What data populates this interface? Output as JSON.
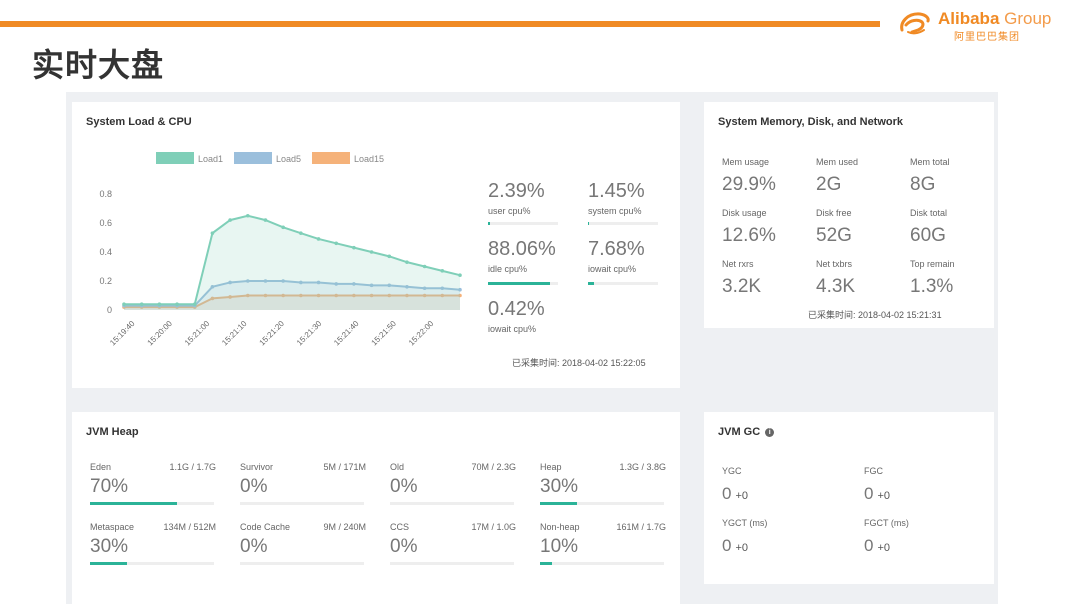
{
  "header": {
    "title": "实时大盘",
    "brand": {
      "name": "Alibaba",
      "group": "Group",
      "cn": "阿里巴巴集团"
    }
  },
  "colors": {
    "accent": "#f08a24",
    "load1": "#7fcfb8",
    "load5": "#9bbfdc",
    "load15": "#f5b27a",
    "bar": "#2bb398"
  },
  "load_card": {
    "title": "System Load & CPU",
    "stats": [
      {
        "value": "2.39%",
        "label": "user cpu%"
      },
      {
        "value": "1.45%",
        "label": "system cpu%"
      },
      {
        "value": "88.06%",
        "label": "idle cpu%"
      },
      {
        "value": "7.68%",
        "label": "iowait cpu%"
      },
      {
        "value": "0.42%",
        "label": "iowait cpu%"
      }
    ],
    "timestamp": "已采集时间: 2018-04-02 15:22:05"
  },
  "chart_data": {
    "type": "line",
    "legend": [
      "Load1",
      "Load5",
      "Load15"
    ],
    "yticks": [
      "0.8",
      "0.6",
      "0.4",
      "0.2",
      "0"
    ],
    "ylim": [
      0,
      0.8
    ],
    "xticks": [
      "15:19:40",
      "15:20:00",
      "15:21:00",
      "15:21:10",
      "15:21:20",
      "15:21:30",
      "15:21:40",
      "15:21:50",
      "15:22:00"
    ],
    "x": [
      0,
      1,
      2,
      3,
      4,
      5,
      6,
      7,
      8,
      9,
      10,
      11,
      12,
      13,
      14,
      15,
      16,
      17,
      18,
      19
    ],
    "series": [
      {
        "name": "Load1",
        "values": [
          0.04,
          0.04,
          0.04,
          0.04,
          0.04,
          0.53,
          0.62,
          0.65,
          0.62,
          0.57,
          0.53,
          0.49,
          0.46,
          0.43,
          0.4,
          0.37,
          0.33,
          0.3,
          0.27,
          0.24
        ]
      },
      {
        "name": "Load5",
        "values": [
          0.03,
          0.03,
          0.03,
          0.03,
          0.03,
          0.16,
          0.19,
          0.2,
          0.2,
          0.2,
          0.19,
          0.19,
          0.18,
          0.18,
          0.17,
          0.17,
          0.16,
          0.15,
          0.15,
          0.14
        ]
      },
      {
        "name": "Load15",
        "values": [
          0.02,
          0.02,
          0.02,
          0.02,
          0.02,
          0.08,
          0.09,
          0.1,
          0.1,
          0.1,
          0.1,
          0.1,
          0.1,
          0.1,
          0.1,
          0.1,
          0.1,
          0.1,
          0.1,
          0.1
        ]
      }
    ]
  },
  "mem_card": {
    "title": "System Memory, Disk, and Network",
    "items": [
      {
        "label": "Mem usage",
        "value": "29.9%"
      },
      {
        "label": "Mem used",
        "value": "2G"
      },
      {
        "label": "Mem total",
        "value": "8G"
      },
      {
        "label": "Disk usage",
        "value": "12.6%"
      },
      {
        "label": "Disk free",
        "value": "52G"
      },
      {
        "label": "Disk total",
        "value": "60G"
      },
      {
        "label": "Net rxrs",
        "value": "3.2K"
      },
      {
        "label": "Net txbrs",
        "value": "4.3K"
      },
      {
        "label": "Top remain",
        "value": "1.3%"
      }
    ],
    "timestamp": "已采集时间: 2018-04-02 15:21:31"
  },
  "heap_card": {
    "title": "JVM Heap",
    "items": [
      {
        "label": "Eden",
        "size": "1.1G / 1.7G",
        "value": "70%",
        "fraction": 0.7
      },
      {
        "label": "Survivor",
        "size": "5M / 171M",
        "value": "0%",
        "fraction": 0
      },
      {
        "label": "Old",
        "size": "70M / 2.3G",
        "value": "0%",
        "fraction": 0
      },
      {
        "label": "Heap",
        "size": "1.3G / 3.8G",
        "value": "30%",
        "fraction": 0.3
      },
      {
        "label": "Metaspace",
        "size": "134M / 512M",
        "value": "30%",
        "fraction": 0.3
      },
      {
        "label": "Code Cache",
        "size": "9M / 240M",
        "value": "0%",
        "fraction": 0
      },
      {
        "label": "CCS",
        "size": "17M / 1.0G",
        "value": "0%",
        "fraction": 0
      },
      {
        "label": "Non-heap",
        "size": "161M / 1.7G",
        "value": "10%",
        "fraction": 0.1
      }
    ]
  },
  "gc_card": {
    "title": "JVM GC",
    "info_icon": "info-icon",
    "items": [
      {
        "label": "YGC",
        "value": "0",
        "delta": "+0"
      },
      {
        "label": "FGC",
        "value": "0",
        "delta": "+0"
      },
      {
        "label": "YGCT (ms)",
        "value": "0",
        "delta": "+0"
      },
      {
        "label": "FGCT (ms)",
        "value": "0",
        "delta": "+0"
      }
    ]
  }
}
